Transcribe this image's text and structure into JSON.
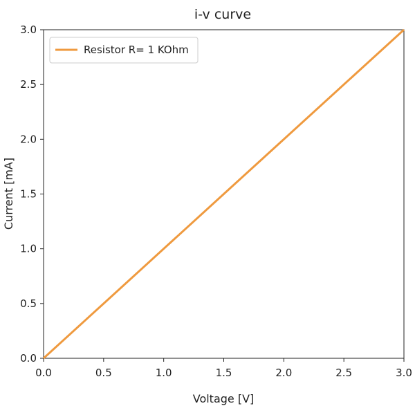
{
  "chart_data": {
    "type": "line",
    "title": "i-v curve",
    "xlabel": "Voltage [V]",
    "ylabel": "Current [mA]",
    "xlim": [
      0,
      3
    ],
    "ylim": [
      0,
      3
    ],
    "x_ticks": [
      "0.0",
      "0.5",
      "1.0",
      "1.5",
      "2.0",
      "2.5",
      "3.0"
    ],
    "y_ticks": [
      "0.0",
      "0.5",
      "1.0",
      "1.5",
      "2.0",
      "2.5",
      "3.0"
    ],
    "grid": false,
    "legend_position": "top-left",
    "series": [
      {
        "name": "Resistor R= 1 KOhm",
        "color": "#ef9a3f",
        "x": [
          0,
          0.5,
          1.0,
          1.5,
          2.0,
          2.5,
          3.0
        ],
        "y": [
          0,
          0.5,
          1.0,
          1.5,
          2.0,
          2.5,
          3.0
        ]
      }
    ]
  }
}
